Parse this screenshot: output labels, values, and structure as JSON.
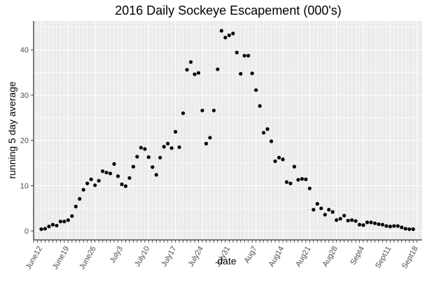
{
  "chart_data": {
    "type": "scatter",
    "title": "2016 Daily Sockeye Escapement (000's)",
    "xlabel": "date",
    "ylabel": "running 5 day average",
    "ylim": [
      -1,
      46
    ],
    "y_ticks": [
      0,
      10,
      20,
      30,
      40
    ],
    "x_start": "June12",
    "x_tick_labels": [
      "June12",
      "June19",
      "June26",
      "July3",
      "July10",
      "July17",
      "July24",
      "July31",
      "Aug7",
      "Aug14",
      "Aug21",
      "Aug28",
      "Sept4",
      "Sept11",
      "Sept18"
    ],
    "grid": true,
    "background": "#ebebeb",
    "point_color": "#000000",
    "values": [
      0.4,
      0.5,
      1.0,
      1.4,
      1.2,
      2.1,
      2.1,
      2.4,
      3.3,
      5.4,
      7.1,
      9.1,
      10.5,
      11.4,
      10.1,
      11.1,
      13.2,
      12.9,
      12.7,
      14.8,
      12.1,
      10.3,
      9.9,
      11.7,
      14.2,
      16.4,
      18.4,
      18.1,
      16.3,
      14.1,
      12.4,
      16.2,
      18.6,
      19.3,
      18.3,
      21.9,
      18.5,
      26.0,
      35.6,
      37.3,
      34.6,
      34.9,
      26.6,
      19.3,
      20.6,
      26.6,
      35.7,
      44.2,
      42.7,
      43.2,
      43.6,
      39.4,
      34.7,
      38.7,
      38.7,
      34.8,
      31.1,
      27.6,
      21.7,
      22.5,
      19.8,
      15.4,
      16.2,
      15.8,
      10.8,
      10.5,
      14.2,
      11.3,
      11.5,
      11.4,
      9.4,
      4.7,
      6.0,
      5.0,
      3.6,
      4.7,
      4.2,
      2.4,
      2.7,
      3.4,
      2.3,
      2.4,
      2.2,
      1.4,
      1.3,
      1.9,
      1.9,
      1.7,
      1.5,
      1.4,
      1.1,
      1.0,
      1.1,
      1.1,
      0.8,
      0.5,
      0.4,
      0.4
    ]
  }
}
